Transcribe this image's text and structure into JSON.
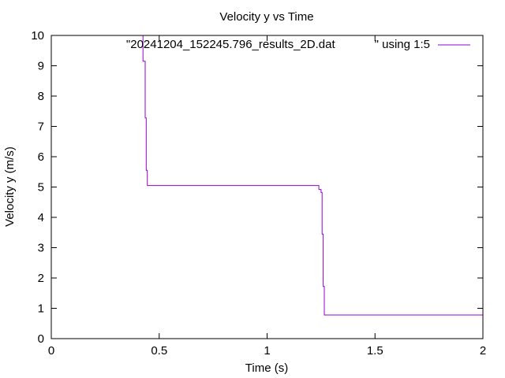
{
  "chart_data": {
    "type": "line",
    "title": "Velocity y vs Time",
    "xlabel": "Time (s)",
    "ylabel": "Velocity y (m/s)",
    "xlim": [
      0,
      2
    ],
    "ylim": [
      0,
      10
    ],
    "xticks": [
      0,
      0.5,
      1,
      1.5,
      2
    ],
    "xtick_labels": [
      "0",
      "0.5",
      "1",
      "1.5",
      "2"
    ],
    "yticks": [
      0,
      1,
      2,
      3,
      4,
      5,
      6,
      7,
      8,
      9,
      10
    ],
    "ytick_labels": [
      "0",
      "1",
      "2",
      "3",
      "4",
      "5",
      "6",
      "7",
      "8",
      "9",
      "10"
    ],
    "grid": false,
    "legend_position": "top-right",
    "series_color": "#9400d3",
    "series": [
      {
        "name": "\"20241204_152245.796_results_2D.dat            \" using 1:5",
        "x": [
          0.42,
          0.425,
          0.425,
          0.435,
          0.435,
          0.44,
          0.44,
          0.445,
          0.445,
          1.24,
          1.24,
          1.25,
          1.25,
          1.255,
          1.255,
          1.26,
          1.26,
          1.265,
          1.265,
          2.0
        ],
        "y": [
          10.0,
          10.0,
          9.15,
          9.15,
          7.28,
          7.28,
          5.55,
          5.55,
          5.05,
          5.05,
          4.92,
          4.92,
          4.82,
          4.82,
          3.45,
          3.45,
          1.72,
          1.72,
          0.78,
          0.78
        ]
      }
    ]
  }
}
